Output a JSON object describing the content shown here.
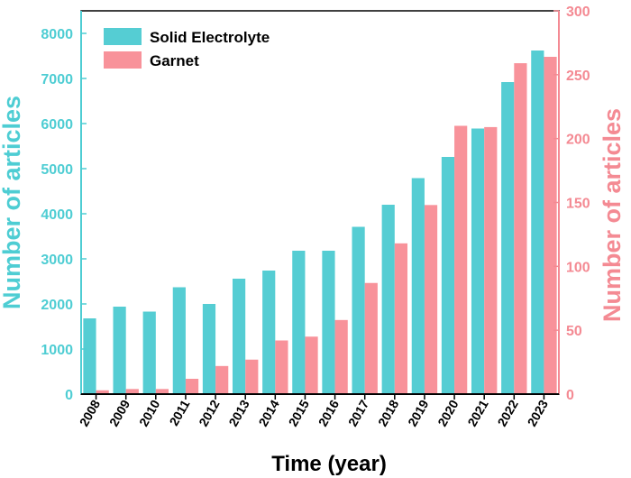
{
  "chart_data": {
    "type": "bar",
    "categories": [
      "2008",
      "2009",
      "2010",
      "2011",
      "2012",
      "2013",
      "2014",
      "2015",
      "2016",
      "2017",
      "2018",
      "2019",
      "2020",
      "2021",
      "2022",
      "2023"
    ],
    "series": [
      {
        "name": "Solid Electrolyte",
        "axis": "left",
        "color": "#55cdd3",
        "values": [
          1680,
          1940,
          1830,
          2370,
          2000,
          2560,
          2740,
          3180,
          3180,
          3710,
          4200,
          4790,
          5260,
          5890,
          6920,
          7620
        ]
      },
      {
        "name": "Garnet",
        "axis": "right",
        "color": "#f8929a",
        "values": [
          3,
          4,
          4,
          12,
          22,
          27,
          42,
          45,
          58,
          87,
          118,
          148,
          210,
          209,
          259,
          264
        ]
      }
    ],
    "xlabel": "Time (year)",
    "ylabel_left": "Number of articles",
    "ylabel_right": "Number of articles",
    "ylim_left": [
      0,
      8500
    ],
    "ylim_right": [
      0,
      300
    ],
    "yticks_left": [
      "0",
      "1000",
      "2000",
      "3000",
      "4000",
      "5000",
      "6000",
      "7000",
      "8000"
    ],
    "yticks_right": [
      "0",
      "50",
      "100",
      "150",
      "200",
      "250",
      "300"
    ],
    "left_axis_color": "#4ecdd3",
    "right_axis_color": "#f48a93",
    "legend_position": "top-left",
    "grid": false
  }
}
